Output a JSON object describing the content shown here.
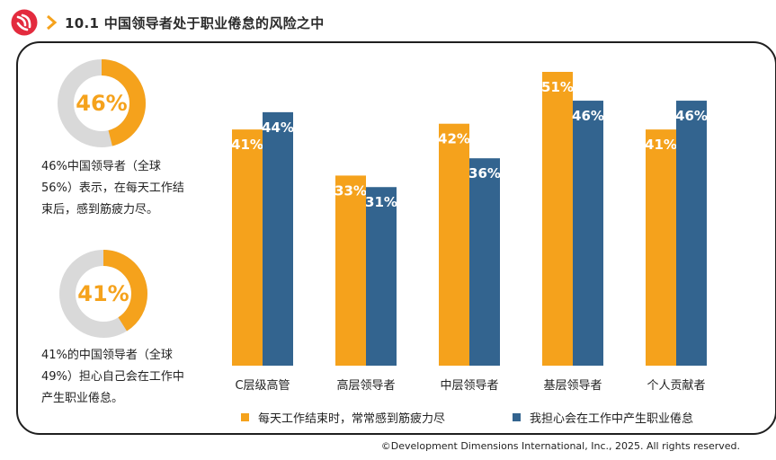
{
  "header": {
    "title": "10.1 中国领导者处于职业倦怠的风险之中"
  },
  "stats": [
    {
      "value_label": "46%",
      "percent": 46,
      "description": "46%中国领导者（全球\n56%）表示，在每天工作结\n束后，感到筋疲力尽。"
    },
    {
      "value_label": "41%",
      "percent": 41,
      "description": "41%的中国领导者（全球\n49%）担心自己会在工作中\n产生职业倦怠。"
    }
  ],
  "colors": {
    "orange": "#f5a21c",
    "blue": "#33648f",
    "gray": "#d9d9d9"
  },
  "chart_data": {
    "type": "bar",
    "categories": [
      "C层级高管",
      "高层领导者",
      "中层领导者",
      "基层领导者",
      "个人贡献者"
    ],
    "series": [
      {
        "name": "每天工作结束时，常常感到筋疲力尽",
        "values": [
          41,
          33,
          42,
          51,
          41
        ],
        "labels": [
          "41%",
          "33%",
          "42%",
          "51%",
          "41%"
        ],
        "color": "#f5a21c"
      },
      {
        "name": "我担心会在工作中产生职业倦怠",
        "values": [
          44,
          31,
          36,
          46,
          46
        ],
        "labels": [
          "44%",
          "31%",
          "36%",
          "46%",
          "46%"
        ],
        "color": "#33648f"
      }
    ],
    "ylim": [
      0,
      51
    ],
    "grid": false,
    "legend_position": "bottom"
  },
  "footer": "©Development Dimensions International, Inc., 2025. All rights reserved."
}
